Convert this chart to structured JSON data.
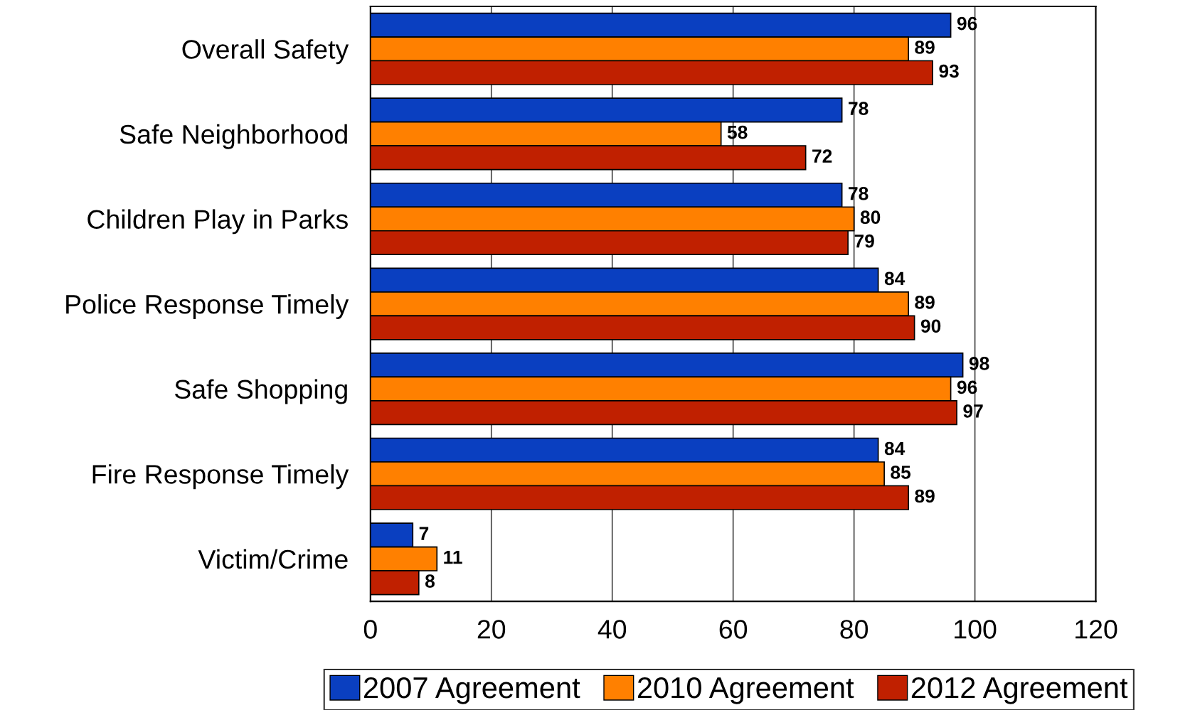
{
  "chart_data": {
    "type": "bar",
    "orientation": "horizontal",
    "categories": [
      "Overall Safety",
      "Safe Neighborhood",
      "Children Play in Parks",
      "Police Response Timely",
      "Safe Shopping",
      "Fire Response Timely",
      "Victim/Crime"
    ],
    "series": [
      {
        "name": "2007 Agreement",
        "color": "#0a3fc0",
        "values": [
          96,
          78,
          78,
          84,
          98,
          84,
          7
        ]
      },
      {
        "name": "2010 Agreement",
        "color": "#ff8000",
        "values": [
          89,
          58,
          80,
          89,
          96,
          85,
          11
        ]
      },
      {
        "name": "2012 Agreement",
        "color": "#c02000",
        "values": [
          93,
          72,
          79,
          90,
          97,
          89,
          8
        ]
      }
    ],
    "xlim": [
      0,
      120
    ],
    "xticks": [
      0,
      20,
      40,
      60,
      80,
      100,
      120
    ],
    "grid": "x",
    "legend": "bottom",
    "data_labels": true
  }
}
